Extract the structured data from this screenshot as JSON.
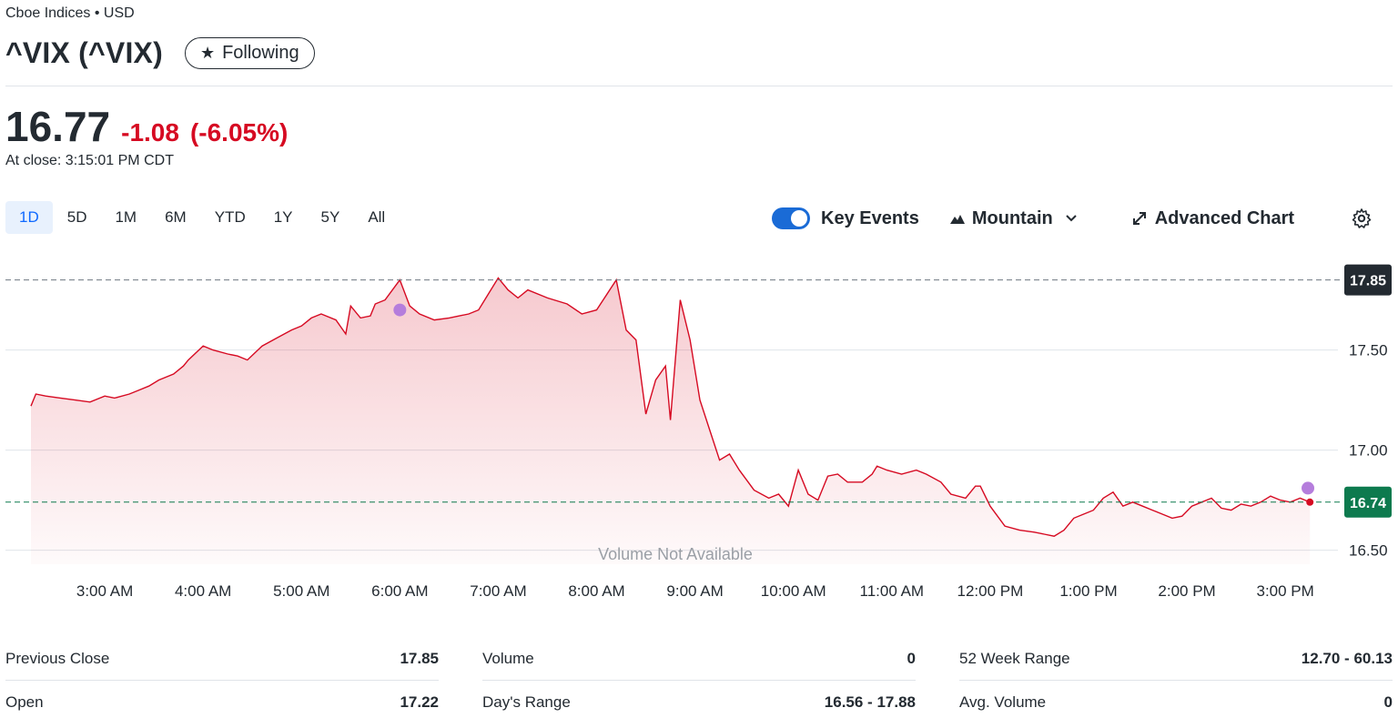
{
  "header": {
    "exchange": "Cboe Indices • USD",
    "title": "^VIX (^VIX)",
    "follow_label": "Following"
  },
  "quote": {
    "price": "16.77",
    "change": "-1.08",
    "change_pct": "(-6.05%)",
    "close_time": "At close: 3:15:01 PM CDT"
  },
  "ranges": [
    "1D",
    "5D",
    "1M",
    "6M",
    "YTD",
    "1Y",
    "5Y",
    "All"
  ],
  "active_range": "1D",
  "toolbar": {
    "key_events": "Key Events",
    "chart_type": "Mountain",
    "advanced": "Advanced Chart"
  },
  "colors": {
    "line": "#d60a22",
    "event": "#b57ddc",
    "prev_close_badge": "#232a31",
    "current_badge": "#0d7a4e"
  },
  "chart_data": {
    "type": "area",
    "x_ticks": [
      "3:00 AM",
      "4:00 AM",
      "5:00 AM",
      "6:00 AM",
      "7:00 AM",
      "8:00 AM",
      "9:00 AM",
      "10:00 AM",
      "11:00 AM",
      "12:00 PM",
      "1:00 PM",
      "2:00 PM",
      "3:00 PM"
    ],
    "y_ticks": [
      "16.50",
      "17.00",
      "17.50"
    ],
    "ylim": [
      16.43,
      17.93
    ],
    "xlim": [
      2.25,
      15.35
    ],
    "previous_close": 17.85,
    "previous_close_label": "17.85",
    "current": 16.74,
    "current_label": "16.74",
    "volume_note": "Volume Not Available",
    "x": [
      2.25,
      2.3,
      2.4,
      2.55,
      2.7,
      2.85,
      3.0,
      3.1,
      3.25,
      3.35,
      3.45,
      3.55,
      3.7,
      3.8,
      3.85,
      4.0,
      4.1,
      4.25,
      4.35,
      4.45,
      4.6,
      4.75,
      4.9,
      5.0,
      5.1,
      5.2,
      5.35,
      5.45,
      5.5,
      5.6,
      5.7,
      5.75,
      5.85,
      6.0,
      6.1,
      6.2,
      6.35,
      6.5,
      6.6,
      6.7,
      6.8,
      6.9,
      7.0,
      7.1,
      7.2,
      7.3,
      7.5,
      7.7,
      7.85,
      8.0,
      8.2,
      8.3,
      8.4,
      8.5,
      8.6,
      8.7,
      8.75,
      8.85,
      8.95,
      9.05,
      9.15,
      9.25,
      9.35,
      9.45,
      9.6,
      9.75,
      9.85,
      9.95,
      10.05,
      10.15,
      10.25,
      10.35,
      10.45,
      10.55,
      10.7,
      10.8,
      10.85,
      10.95,
      11.1,
      11.25,
      11.35,
      11.5,
      11.6,
      11.75,
      11.85,
      11.9,
      12.0,
      12.15,
      12.3,
      12.45,
      12.55,
      12.65,
      12.75,
      12.85,
      12.95,
      13.05,
      13.15,
      13.25,
      13.35,
      13.45,
      13.55,
      13.65,
      13.75,
      13.85,
      13.95,
      14.05,
      14.15,
      14.25,
      14.35,
      14.45,
      14.55,
      14.65,
      14.75,
      14.85,
      14.95,
      15.05,
      15.15,
      15.25
    ],
    "y": [
      17.22,
      17.28,
      17.27,
      17.26,
      17.25,
      17.24,
      17.27,
      17.26,
      17.28,
      17.3,
      17.32,
      17.35,
      17.38,
      17.42,
      17.45,
      17.52,
      17.5,
      17.48,
      17.47,
      17.45,
      17.52,
      17.56,
      17.6,
      17.62,
      17.66,
      17.68,
      17.65,
      17.58,
      17.72,
      17.66,
      17.67,
      17.73,
      17.75,
      17.85,
      17.72,
      17.68,
      17.65,
      17.66,
      17.67,
      17.68,
      17.7,
      17.78,
      17.86,
      17.8,
      17.76,
      17.8,
      17.76,
      17.73,
      17.68,
      17.7,
      17.85,
      17.6,
      17.55,
      17.18,
      17.35,
      17.42,
      17.15,
      17.75,
      17.55,
      17.25,
      17.1,
      16.95,
      16.98,
      16.9,
      16.8,
      16.76,
      16.78,
      16.72,
      16.9,
      16.78,
      16.75,
      16.87,
      16.88,
      16.84,
      16.84,
      16.88,
      16.92,
      16.9,
      16.88,
      16.9,
      16.88,
      16.84,
      16.78,
      16.76,
      16.82,
      16.82,
      16.72,
      16.62,
      16.6,
      16.59,
      16.58,
      16.57,
      16.6,
      16.66,
      16.68,
      16.7,
      16.76,
      16.79,
      16.72,
      16.74,
      16.72,
      16.7,
      16.68,
      16.66,
      16.67,
      16.72,
      16.74,
      16.76,
      16.71,
      16.7,
      16.73,
      16.72,
      16.74,
      16.77,
      16.75,
      16.74,
      16.76,
      16.74
    ],
    "events": [
      {
        "x": 6.0,
        "y": 17.7
      },
      {
        "x": 15.23,
        "y": 16.81
      }
    ]
  },
  "stats": {
    "left": [
      {
        "label": "Previous Close",
        "value": "17.85"
      },
      {
        "label": "Open",
        "value": "17.22"
      }
    ],
    "middle": [
      {
        "label": "Volume",
        "value": "0"
      },
      {
        "label": "Day's Range",
        "value": "16.56 - 17.88"
      }
    ],
    "right": [
      {
        "label": "52 Week Range",
        "value": "12.70 - 60.13"
      },
      {
        "label": "Avg. Volume",
        "value": "0"
      }
    ]
  }
}
